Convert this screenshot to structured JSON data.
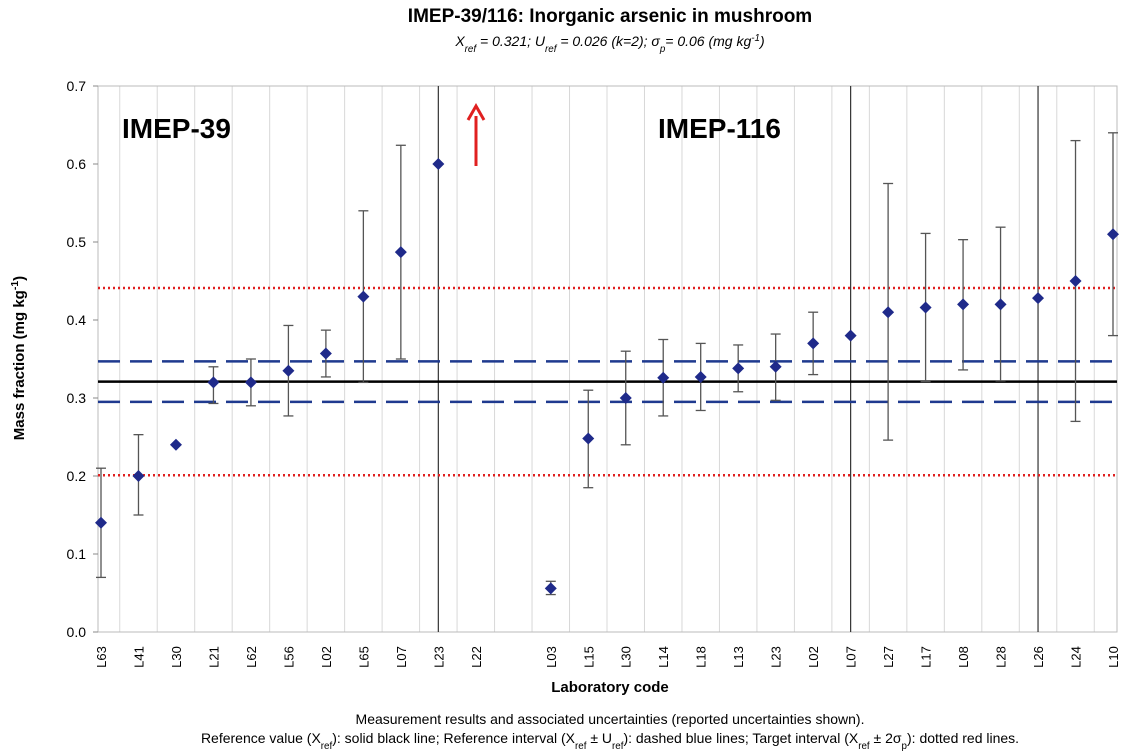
{
  "chart_data": {
    "type": "errorbar",
    "title": "IMEP-39/116: Inorganic arsenic in mushroom",
    "subtitle_parts": [
      "X",
      "ref",
      " = 0.321; U",
      "ref",
      " = 0.026 (k=2); σ",
      "p",
      "= 0.06 (mg kg",
      "-1",
      ")"
    ],
    "y_label_parts": [
      "Mass fraction (mg kg",
      "-1",
      ")"
    ],
    "x_label": "Laboratory code",
    "footer_line1": "Measurement results and associated uncertainties (reported uncertainties shown).",
    "footer_line2_parts": [
      "Reference value (X",
      "ref",
      "): solid black line; Reference interval (X",
      "ref",
      " ± U",
      "ref",
      "): dashed blue lines; Target interval (X",
      "ref",
      " ± 2σ",
      "p",
      "): dotted red lines."
    ],
    "annotations": [
      "IMEP-39",
      "IMEP-116"
    ],
    "categories": [
      "L63",
      "L41",
      "L30",
      "L21",
      "L62",
      "L56",
      "L02",
      "L65",
      "L07",
      "L23",
      "L22",
      null,
      "L03",
      "L15",
      "L30",
      "L14",
      "L18",
      "L13",
      "L23",
      "L02",
      "L07",
      "L27",
      "L17",
      "L08",
      "L28",
      "L26",
      "L24",
      "L10"
    ],
    "values": [
      0.14,
      0.2,
      0.24,
      0.32,
      0.32,
      0.335,
      0.357,
      0.43,
      0.487,
      0.6,
      null,
      null,
      0.056,
      0.248,
      0.3,
      0.326,
      0.327,
      0.338,
      0.34,
      0.37,
      0.38,
      0.41,
      0.416,
      0.42,
      0.42,
      0.428,
      0.45,
      0.51
    ],
    "lower": [
      0.07,
      0.15,
      null,
      0.293,
      0.29,
      0.277,
      0.327,
      0.32,
      0.35,
      null,
      null,
      null,
      0.048,
      0.185,
      0.24,
      0.277,
      0.284,
      0.308,
      0.297,
      0.33,
      null,
      0.246,
      0.321,
      0.336,
      0.322,
      null,
      0.27,
      0.38
    ],
    "upper": [
      0.21,
      0.253,
      null,
      0.34,
      0.35,
      0.393,
      0.387,
      0.54,
      0.624,
      null,
      null,
      null,
      0.065,
      0.31,
      0.36,
      0.375,
      0.37,
      0.368,
      0.382,
      0.41,
      null,
      0.575,
      0.511,
      0.503,
      0.519,
      null,
      0.63,
      0.64
    ],
    "reference_value": 0.321,
    "reference_interval": [
      0.295,
      0.347
    ],
    "target_interval": [
      0.201,
      0.441
    ],
    "marker_color": "#1f2a8a",
    "reference_color": "#000000",
    "interval_color": "#1f3a8f",
    "target_color": "#e02020",
    "ylim": [
      0,
      0.7
    ],
    "yticks": [
      {
        "value": 0,
        "label": "0.0"
      },
      0.1,
      0.2,
      0.3,
      0.4,
      0.5,
      0.6,
      0.7
    ],
    "grid": true
  }
}
